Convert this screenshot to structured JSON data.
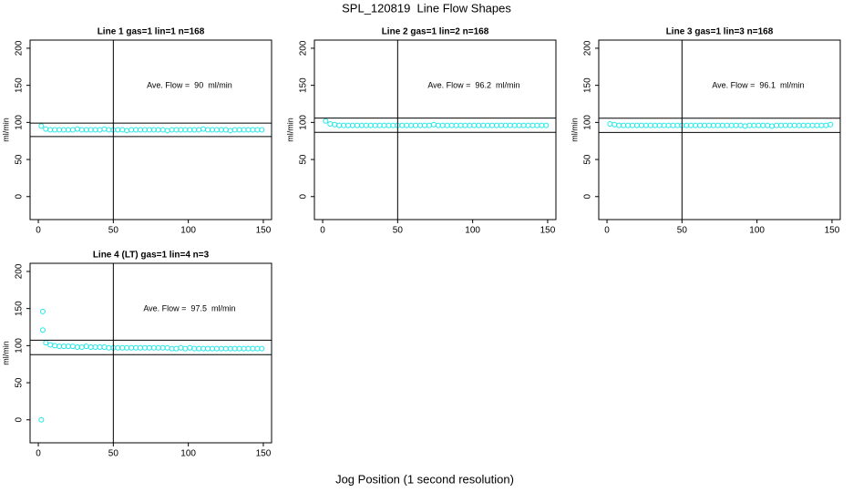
{
  "title": "SPL_120819  Line Flow Shapes",
  "xlabel": "Jog Position (1 second resolution)",
  "chart_data": [
    {
      "type": "scatter",
      "title": "Line 1 gas=1 lin=1 n=168",
      "ylabel": "ml/min",
      "annotation": "Ave. Flow =  90  ml/min",
      "color": "#1ee8e8",
      "xlim": [
        -5.5,
        155.5
      ],
      "ylim": [
        -31,
        211
      ],
      "xticks": [
        0,
        50,
        100,
        150
      ],
      "yticks": [
        0,
        50,
        100,
        150,
        200
      ],
      "hlines": [
        99,
        81
      ],
      "vlines": [
        50
      ],
      "x": [
        2,
        5,
        8,
        11,
        14,
        17,
        20,
        23,
        26,
        29,
        32,
        35,
        38,
        41,
        44,
        47,
        50,
        53,
        56,
        59,
        62,
        65,
        68,
        71,
        74,
        77,
        80,
        83,
        86,
        89,
        92,
        95,
        98,
        101,
        104,
        107,
        110,
        113,
        116,
        119,
        122,
        125,
        128,
        131,
        134,
        137,
        140,
        143,
        146,
        149
      ],
      "values": [
        95,
        91,
        90,
        90,
        90,
        90,
        90,
        90,
        91,
        90,
        90,
        90,
        90,
        90,
        91,
        90,
        90,
        90,
        90,
        89,
        90,
        90,
        90,
        90,
        90,
        90,
        90,
        90,
        89,
        90,
        90,
        90,
        90,
        90,
        90,
        90,
        91,
        90,
        90,
        90,
        90,
        90,
        89,
        90,
        90,
        90,
        90,
        90,
        90,
        90
      ]
    },
    {
      "type": "scatter",
      "title": "Line 2 gas=1 lin=2 n=168",
      "ylabel": "ml/min",
      "annotation": "Ave. Flow =  96.2  ml/min",
      "color": "#1ee8e8",
      "xlim": [
        -5.5,
        155.5
      ],
      "ylim": [
        -31,
        211
      ],
      "xticks": [
        0,
        50,
        100,
        150
      ],
      "yticks": [
        0,
        50,
        100,
        150,
        200
      ],
      "hlines": [
        105.8,
        86.6
      ],
      "vlines": [
        50
      ],
      "x": [
        2,
        5,
        8,
        11,
        14,
        17,
        20,
        23,
        26,
        29,
        32,
        35,
        38,
        41,
        44,
        47,
        50,
        53,
        56,
        59,
        62,
        65,
        68,
        71,
        74,
        77,
        80,
        83,
        86,
        89,
        92,
        95,
        98,
        101,
        104,
        107,
        110,
        113,
        116,
        119,
        122,
        125,
        128,
        131,
        134,
        137,
        140,
        143,
        146,
        149
      ],
      "values": [
        102,
        98,
        97,
        96,
        96,
        96,
        96,
        96,
        96,
        96,
        96,
        96,
        96,
        96,
        96,
        96,
        96,
        96,
        96,
        96,
        96,
        96,
        96,
        96,
        97,
        96,
        96,
        96,
        96,
        96,
        96,
        96,
        96,
        96,
        96,
        96,
        96,
        96,
        96,
        96,
        96,
        96,
        96,
        96,
        96,
        96,
        96,
        96,
        96,
        96
      ]
    },
    {
      "type": "scatter",
      "title": "Line 3 gas=1 lin=3 n=168",
      "ylabel": "ml/min",
      "annotation": "Ave. Flow =  96.1  ml/min",
      "color": "#1ee8e8",
      "xlim": [
        -5.5,
        155.5
      ],
      "ylim": [
        -31,
        211
      ],
      "xticks": [
        0,
        50,
        100,
        150
      ],
      "yticks": [
        0,
        50,
        100,
        150,
        200
      ],
      "hlines": [
        105.7,
        86.5
      ],
      "vlines": [
        50
      ],
      "x": [
        2,
        5,
        8,
        11,
        14,
        17,
        20,
        23,
        26,
        29,
        32,
        35,
        38,
        41,
        44,
        47,
        50,
        53,
        56,
        59,
        62,
        65,
        68,
        71,
        74,
        77,
        80,
        83,
        86,
        89,
        92,
        95,
        98,
        101,
        104,
        107,
        110,
        113,
        116,
        119,
        122,
        125,
        128,
        131,
        134,
        137,
        140,
        143,
        146,
        149
      ],
      "values": [
        98,
        97,
        96,
        96,
        96,
        96,
        96,
        96,
        96,
        96,
        96,
        96,
        96,
        96,
        96,
        96,
        96,
        96,
        96,
        96,
        96,
        96,
        96,
        96,
        96,
        96,
        96,
        96,
        96,
        96,
        95,
        96,
        96,
        96,
        96,
        96,
        95,
        96,
        96,
        96,
        96,
        96,
        96,
        96,
        96,
        96,
        96,
        96,
        96,
        97
      ]
    },
    {
      "type": "scatter",
      "title": "Line 4 (LT) gas=1 lin=4 n=3",
      "ylabel": "ml/min",
      "annotation": "Ave. Flow =  97.5  ml/min",
      "color": "#1ee8e8",
      "xlim": [
        -5.5,
        155.5
      ],
      "ylim": [
        -31,
        211
      ],
      "xticks": [
        0,
        50,
        100,
        150
      ],
      "yticks": [
        0,
        50,
        100,
        150,
        200
      ],
      "hlines": [
        107.3,
        87.8
      ],
      "vlines": [
        50
      ],
      "x": [
        2,
        3,
        3,
        5,
        8,
        11,
        14,
        17,
        20,
        23,
        26,
        29,
        32,
        35,
        38,
        41,
        44,
        47,
        50,
        53,
        56,
        59,
        62,
        65,
        68,
        71,
        74,
        77,
        80,
        83,
        86,
        89,
        92,
        95,
        98,
        101,
        104,
        107,
        110,
        113,
        116,
        119,
        122,
        125,
        128,
        131,
        134,
        137,
        140,
        143,
        146,
        149
      ],
      "values": [
        0,
        146,
        121,
        104,
        101,
        100,
        99,
        99,
        99,
        99,
        98,
        98,
        99,
        98,
        98,
        98,
        98,
        97,
        97,
        97,
        97,
        97,
        97,
        97,
        97,
        97,
        97,
        97,
        97,
        97,
        97,
        96,
        96,
        97,
        96,
        97,
        96,
        96,
        96,
        96,
        96,
        96,
        96,
        96,
        96,
        96,
        96,
        96,
        96,
        96,
        96,
        96
      ]
    }
  ]
}
